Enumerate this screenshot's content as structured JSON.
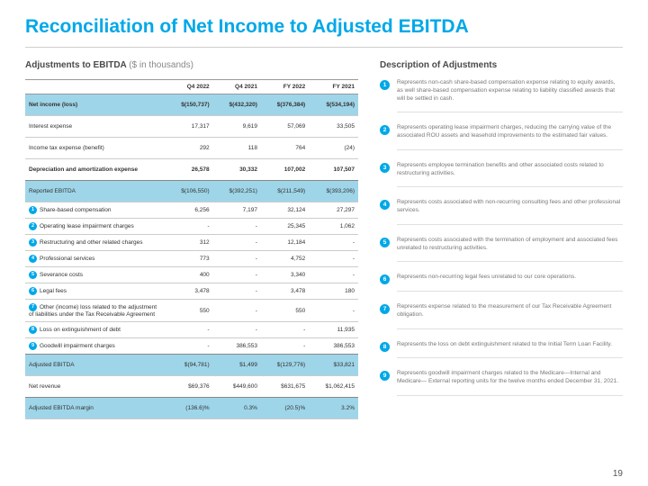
{
  "title": "Reconciliation of Net Income to Adjusted EBITDA",
  "leftHeading": "Adjustments to EBITDA",
  "leftSub": "($ in thousands)",
  "rightHeading": "Description of Adjustments",
  "pageNumber": "19",
  "cols": [
    "Q4 2022",
    "Q4 2021",
    "FY 2022",
    "FY 2021"
  ],
  "rows": [
    {
      "label": "Net income (loss)",
      "v": [
        "$(150,737)",
        "$(432,320)",
        "$(376,384)",
        "$(534,194)"
      ],
      "hl": true,
      "bold": true,
      "sp": true
    },
    {
      "label": "Interest expense",
      "v": [
        "17,317",
        "9,619",
        "57,069",
        "33,505"
      ],
      "sp": true
    },
    {
      "label": "Income tax expense (benefit)",
      "v": [
        "292",
        "118",
        "764",
        "(24)"
      ],
      "sp": true
    },
    {
      "label": "Depreciation and amortization expense",
      "v": [
        "26,578",
        "30,332",
        "107,002",
        "107,507"
      ],
      "bold": true,
      "thick": true,
      "sp": true
    },
    {
      "label": "Reported EBITDA",
      "v": [
        "$(106,550)",
        "$(392,251)",
        "$(211,549)",
        "$(393,206)"
      ],
      "hl": true,
      "sp": true
    },
    {
      "label": "Share-based compensation",
      "v": [
        "6,256",
        "7,197",
        "32,124",
        "27,297"
      ],
      "n": "1"
    },
    {
      "label": "Operating lease impairment charges",
      "v": [
        "-",
        "-",
        "25,345",
        "1,062"
      ],
      "n": "2"
    },
    {
      "label": "Restructuring and other related charges",
      "v": [
        "312",
        "-",
        "12,184",
        "-"
      ],
      "n": "3"
    },
    {
      "label": "Professional services",
      "v": [
        "773",
        "-",
        "4,752",
        "-"
      ],
      "n": "4"
    },
    {
      "label": "Severance costs",
      "v": [
        "400",
        "-",
        "3,340",
        "-"
      ],
      "n": "5"
    },
    {
      "label": "Legal fees",
      "v": [
        "3,478",
        "-",
        "3,478",
        "180"
      ],
      "n": "6"
    },
    {
      "label": "Other (income) loss related to the adjustment of liabilities under the Tax Receivable Agreement",
      "v": [
        "550",
        "-",
        "550",
        "-"
      ],
      "n": "7"
    },
    {
      "label": "Loss on extinguishment of debt",
      "v": [
        "-",
        "-",
        "-",
        "11,935"
      ],
      "n": "8"
    },
    {
      "label": "Goodwill impairment charges",
      "v": [
        "-",
        "386,553",
        "-",
        "386,553"
      ],
      "n": "9",
      "thick": true
    },
    {
      "label": "Adjusted EBITDA",
      "v": [
        "$(94,781)",
        "$1,499",
        "$(129,776)",
        "$33,821"
      ],
      "hl": true,
      "sp": true
    },
    {
      "label": "Net revenue",
      "v": [
        "$69,376",
        "$449,600",
        "$631,675",
        "$1,062,415"
      ],
      "thick": true,
      "sp": true
    },
    {
      "label": "Adjusted EBITDA margin",
      "v": [
        "(136.6)%",
        "0.3%",
        "(20.5)%",
        "3.2%"
      ],
      "hl": true,
      "sp": true
    }
  ],
  "descriptions": [
    {
      "n": "1",
      "t": "Represents non-cash share-based compensation expense relating to equity awards, as well share-based compensation expense relating to liability classified awards that will be settled in cash."
    },
    {
      "n": "2",
      "t": "Represents operating lease impairment charges, reducing the carrying value of the associated ROU assets and leasehold improvements to the estimated fair values."
    },
    {
      "n": "3",
      "t": "Represents employee termination benefits and other associated costs related to restructuring activities."
    },
    {
      "n": "4",
      "t": "Represents costs associated with non-recurring consulting fees and other professional services."
    },
    {
      "n": "5",
      "t": "Represents costs associated with the termination of employment and associated fees unrelated to restructuring activities."
    },
    {
      "n": "6",
      "t": "Represents non-recurring legal fees unrelated to our core operations."
    },
    {
      "n": "7",
      "t": "Represents expense related to the measurement of our Tax Receivable Agreement obligation."
    },
    {
      "n": "8",
      "t": "Represents the loss on debt extinguishment related to the Initial Term Loan Facility."
    },
    {
      "n": "9",
      "t": "Represents goodwill impairment charges related to the Medicare—Internal and Medicare— External reporting units for the twelve months ended December 31, 2021."
    }
  ]
}
